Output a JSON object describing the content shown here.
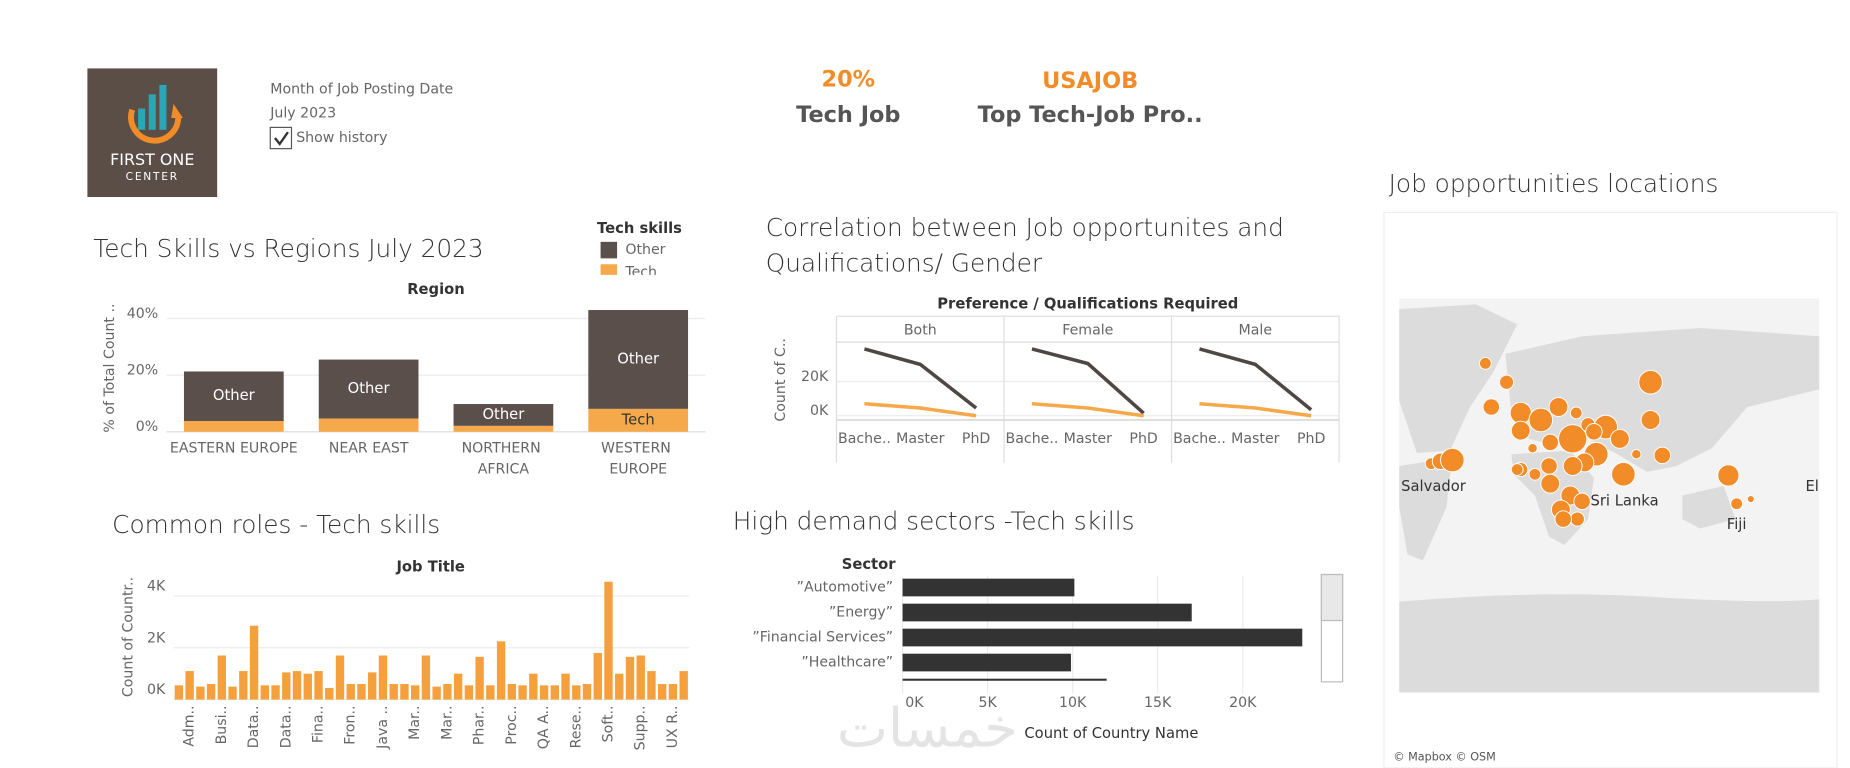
{
  "header": {
    "logo": [
      "FIRST ONE",
      "CENTER"
    ],
    "filter": {
      "label": "Month of Job Posting Date",
      "value": "July 2023",
      "checkbox": "Show history"
    },
    "kpis": [
      {
        "value": "20%",
        "label": "Tech Job"
      },
      {
        "value": "USAJOB",
        "label": "Top Tech-Job Pro.."
      }
    ]
  },
  "chart_data": [
    {
      "type": "stacked_bar",
      "title": "Tech Skills vs Regions July 2023",
      "x_label": "Region",
      "y_label": "% of Total Count ..",
      "legend_title": "Tech skills",
      "categories": [
        "EASTERN EUROPE",
        "NEAR EAST",
        "NORTHERN AFRICA",
        "WESTERN EUROPE"
      ],
      "series": [
        {
          "name": "Other",
          "color": "#5b4f4c",
          "values": [
            17.5,
            20.8,
            7.7,
            34.9
          ]
        },
        {
          "name": "Tech",
          "color": "#f5a94a",
          "values": [
            3.8,
            4.7,
            2.1,
            8.1
          ]
        }
      ],
      "ylim": [
        0,
        45
      ],
      "yticks": [
        {
          "value": 0,
          "label": "0%"
        },
        {
          "value": 20,
          "label": "20%"
        },
        {
          "value": 40,
          "label": "40%"
        }
      ],
      "grid": true
    },
    {
      "type": "line",
      "title": "Correlation between Job opportunites and Qualifications/ Gender",
      "header": "Preference  /  Qualifications Required",
      "y_label": "Count of C..",
      "categories": [
        "Bache..",
        "Master",
        "PhD"
      ],
      "panels": [
        {
          "name": "Both",
          "series": [
            {
              "color": "#4f4646",
              "values": [
                39000,
                30000,
                4500
              ]
            },
            {
              "color": "#f5a94a",
              "values": [
                7000,
                4500,
                0
              ]
            }
          ]
        },
        {
          "name": "Female",
          "series": [
            {
              "color": "#4f4646",
              "values": [
                39000,
                30500,
                1500
              ]
            },
            {
              "color": "#f5a94a",
              "values": [
                7000,
                4500,
                0
              ]
            }
          ]
        },
        {
          "name": "Male",
          "series": [
            {
              "color": "#4f4646",
              "values": [
                39000,
                30000,
                3500
              ]
            },
            {
              "color": "#f5a94a",
              "values": [
                7000,
                4500,
                0
              ]
            }
          ]
        }
      ],
      "ylim": [
        -2500,
        43000
      ],
      "yticks": [
        {
          "value": 0,
          "label": "0K"
        },
        {
          "value": 20000,
          "label": "20K"
        }
      ],
      "grid": true
    },
    {
      "type": "bar",
      "title": "Common roles - Tech skills",
      "x_label": "Job Title",
      "y_label": "Count of Countr..",
      "color": "#f5a03c",
      "categories": [
        null,
        "Adm..",
        null,
        null,
        "Busi..",
        null,
        null,
        "Data..",
        null,
        null,
        "Data..",
        null,
        null,
        "Fina..",
        null,
        null,
        "Fron..",
        null,
        null,
        "Java ..",
        null,
        null,
        "Mar..",
        null,
        null,
        "Mar..",
        null,
        null,
        "Phar..",
        null,
        null,
        "Proc..",
        null,
        null,
        "QA A..",
        null,
        null,
        "Rese..",
        null,
        null,
        "Soft..",
        null,
        null,
        "Supp..",
        null,
        null,
        "UX R..",
        null
      ],
      "values": [
        550,
        1100,
        500,
        600,
        1700,
        500,
        1100,
        2850,
        550,
        550,
        1050,
        1100,
        1000,
        1100,
        450,
        1700,
        600,
        600,
        1050,
        1700,
        600,
        600,
        550,
        1700,
        500,
        600,
        1000,
        550,
        1650,
        550,
        2250,
        600,
        550,
        1000,
        550,
        550,
        1000,
        550,
        600,
        1800,
        4550,
        1000,
        1650,
        1700,
        1100,
        600,
        600,
        1100
      ],
      "ylim": [
        0,
        4600
      ],
      "yticks": [
        {
          "value": 0,
          "label": "0K"
        },
        {
          "value": 2000,
          "label": "2K"
        },
        {
          "value": 4000,
          "label": "4K"
        }
      ],
      "grid": true
    },
    {
      "type": "hbar",
      "title": "High demand sectors -Tech skills",
      "y_label": "Sector",
      "x_label": "Count of Country Name",
      "color": "#333333",
      "categories": [
        "”Automotive”",
        "”Energy”",
        "”Financial Services”",
        "”Healthcare”",
        null
      ],
      "values": [
        10100,
        17000,
        23500,
        9900,
        12000
      ],
      "xlim": [
        0,
        24000
      ],
      "xticks": [
        {
          "value": 0,
          "label": "0K"
        },
        {
          "value": 5000,
          "label": "5K"
        },
        {
          "value": 10000,
          "label": "10K"
        },
        {
          "value": 15000,
          "label": "15K"
        },
        {
          "value": 20000,
          "label": "20K"
        }
      ],
      "grid": true
    }
  ],
  "map": {
    "title": "Job opportunities locations",
    "places": [
      "Salvador",
      "Sri Lanka",
      "Fiji",
      "El"
    ],
    "credit": "© Mapbox © OSM"
  },
  "watermark": "خمسات"
}
